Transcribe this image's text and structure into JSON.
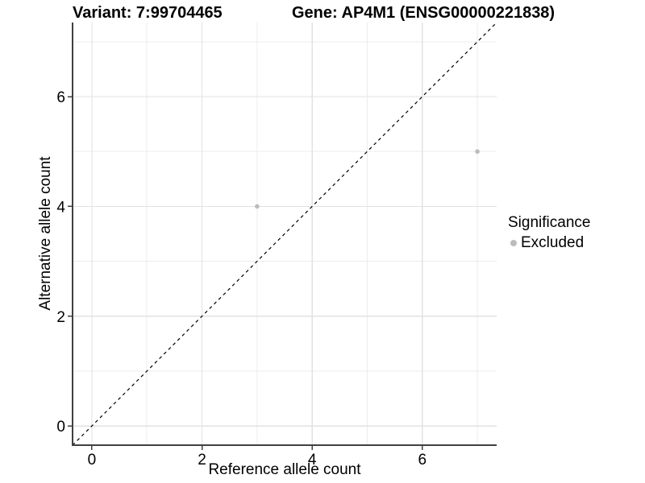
{
  "chart_data": {
    "type": "scatter",
    "title_left": "Variant: 7:99704465",
    "title_right": "Gene: AP4M1 (ENSG00000221838)",
    "xlabel": "Reference allele count",
    "ylabel": "Alternative allele count",
    "xlim": [
      -0.35,
      7.35
    ],
    "ylim": [
      -0.35,
      7.35
    ],
    "xticks": [
      0,
      2,
      4,
      6
    ],
    "yticks": [
      0,
      2,
      4,
      6
    ],
    "xticks_minor": [
      1,
      3,
      5,
      7
    ],
    "yticks_minor": [
      1,
      3,
      5,
      7
    ],
    "grid": "major+minor",
    "identity_line": {
      "style": "dashed",
      "color": "#000000"
    },
    "series": [
      {
        "name": "Excluded",
        "color": "#bcbcbc",
        "marker": "circle",
        "points": [
          {
            "x": 3,
            "y": 4
          },
          {
            "x": 7,
            "y": 5
          }
        ]
      }
    ],
    "legend": {
      "title": "Significance",
      "position": "right"
    }
  },
  "colors": {
    "background": "#ffffff",
    "grid_major": "#e2e2e2",
    "grid_minor": "#ececec",
    "axis_line": "#404040",
    "text": "#000000"
  }
}
